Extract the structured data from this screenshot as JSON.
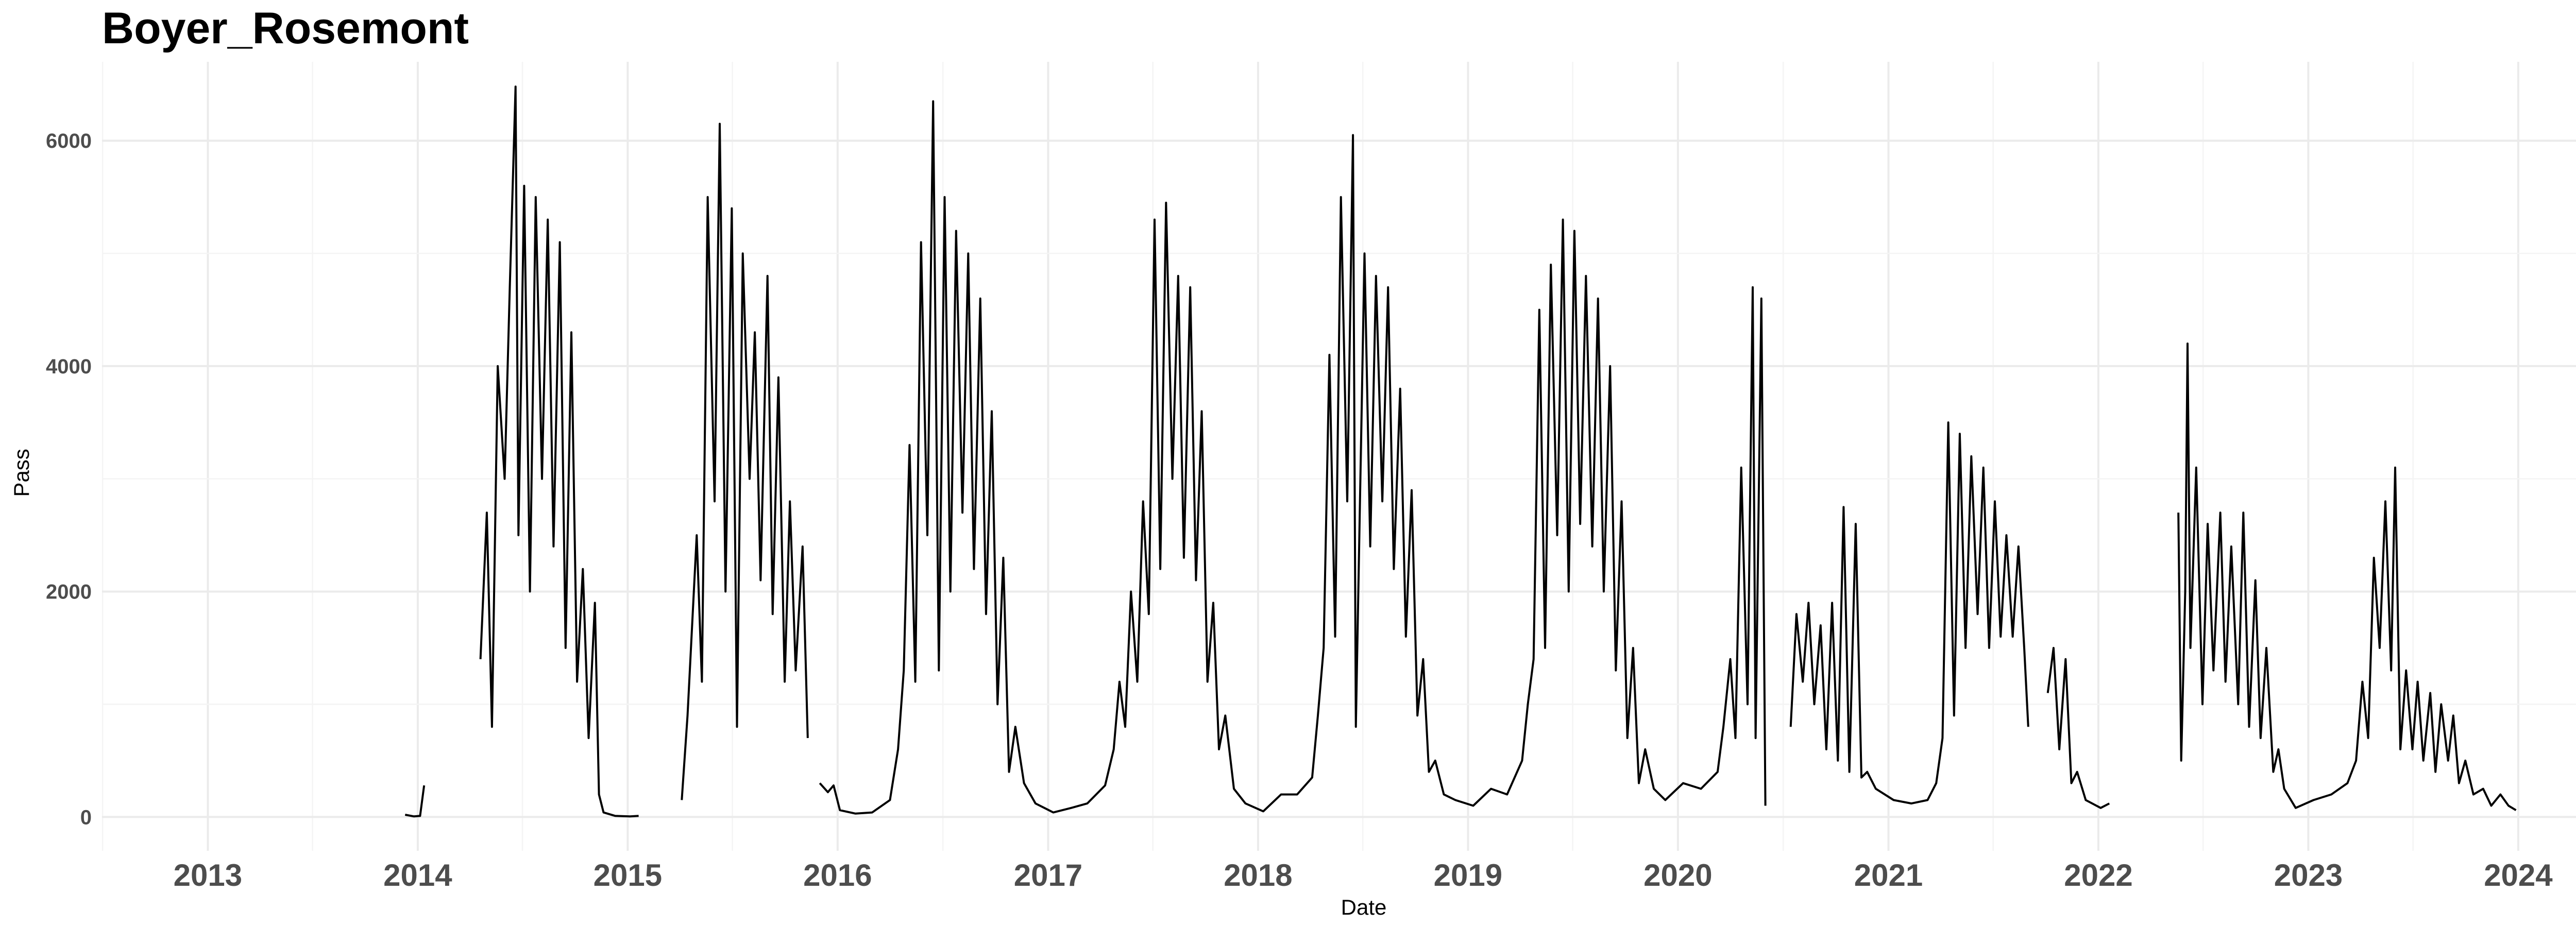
{
  "chart_data": {
    "type": "line",
    "title": "Boyer_Rosemont",
    "xlabel": "Date",
    "ylabel": "Pass",
    "x_axis_type": "date",
    "xlim": [
      "2012-07-01",
      "2024-06-30"
    ],
    "ylim": [
      -300,
      6700
    ],
    "x_ticks": [
      "2013",
      "2014",
      "2015",
      "2016",
      "2017",
      "2018",
      "2019",
      "2020",
      "2021",
      "2022",
      "2023",
      "2024"
    ],
    "y_ticks": [
      0,
      2000,
      4000,
      6000
    ],
    "grid": true,
    "legend": "none",
    "line_color": "#000000",
    "segments": [
      {
        "points": [
          [
            "2013-12-10",
            20
          ],
          [
            "2013-12-25",
            5
          ],
          [
            "2014-01-05",
            10
          ],
          [
            "2014-01-12",
            280
          ]
        ]
      },
      {
        "points": [
          [
            "2014-04-20",
            1400
          ],
          [
            "2014-05-01",
            2700
          ],
          [
            "2014-05-10",
            800
          ],
          [
            "2014-05-20",
            4000
          ],
          [
            "2014-06-01",
            3000
          ],
          [
            "2014-06-10",
            4700
          ],
          [
            "2014-06-20",
            6480
          ],
          [
            "2014-06-25",
            2500
          ],
          [
            "2014-07-05",
            5600
          ],
          [
            "2014-07-15",
            2000
          ],
          [
            "2014-07-25",
            5500
          ],
          [
            "2014-08-05",
            3000
          ],
          [
            "2014-08-15",
            5300
          ],
          [
            "2014-08-25",
            2400
          ],
          [
            "2014-09-05",
            5100
          ],
          [
            "2014-09-15",
            1500
          ],
          [
            "2014-09-25",
            4300
          ],
          [
            "2014-10-05",
            1200
          ],
          [
            "2014-10-15",
            2200
          ],
          [
            "2014-10-25",
            700
          ],
          [
            "2014-11-05",
            1900
          ],
          [
            "2014-11-12",
            200
          ],
          [
            "2014-11-20",
            40
          ],
          [
            "2014-12-10",
            10
          ],
          [
            "2015-01-05",
            5
          ],
          [
            "2015-01-20",
            10
          ]
        ]
      },
      {
        "points": [
          [
            "2015-04-05",
            150
          ],
          [
            "2015-04-15",
            900
          ],
          [
            "2015-05-01",
            2500
          ],
          [
            "2015-05-10",
            1200
          ],
          [
            "2015-05-20",
            5500
          ],
          [
            "2015-06-01",
            2800
          ],
          [
            "2015-06-10",
            6150
          ],
          [
            "2015-06-20",
            2000
          ],
          [
            "2015-07-01",
            5400
          ],
          [
            "2015-07-10",
            800
          ],
          [
            "2015-07-20",
            5000
          ],
          [
            "2015-08-01",
            3000
          ],
          [
            "2015-08-10",
            4300
          ],
          [
            "2015-08-20",
            2100
          ],
          [
            "2015-09-01",
            4800
          ],
          [
            "2015-09-10",
            1800
          ],
          [
            "2015-09-20",
            3900
          ],
          [
            "2015-10-01",
            1200
          ],
          [
            "2015-10-10",
            2800
          ],
          [
            "2015-10-20",
            1300
          ],
          [
            "2015-11-01",
            2400
          ],
          [
            "2015-11-10",
            700
          ]
        ]
      },
      {
        "points": [
          [
            "2015-12-01",
            300
          ],
          [
            "2015-12-15",
            220
          ],
          [
            "2015-12-25",
            280
          ],
          [
            "2016-01-05",
            60
          ],
          [
            "2016-02-01",
            30
          ],
          [
            "2016-03-01",
            40
          ],
          [
            "2016-04-01",
            150
          ],
          [
            "2016-04-15",
            600
          ],
          [
            "2016-04-25",
            1300
          ],
          [
            "2016-05-05",
            3300
          ],
          [
            "2016-05-15",
            1200
          ],
          [
            "2016-05-25",
            5100
          ],
          [
            "2016-06-05",
            2500
          ],
          [
            "2016-06-15",
            6350
          ],
          [
            "2016-06-25",
            1300
          ],
          [
            "2016-07-05",
            5500
          ],
          [
            "2016-07-15",
            2000
          ],
          [
            "2016-07-25",
            5200
          ],
          [
            "2016-08-05",
            2700
          ],
          [
            "2016-08-15",
            5000
          ],
          [
            "2016-08-25",
            2200
          ],
          [
            "2016-09-05",
            4600
          ],
          [
            "2016-09-15",
            1800
          ],
          [
            "2016-09-25",
            3600
          ],
          [
            "2016-10-05",
            1000
          ],
          [
            "2016-10-15",
            2300
          ],
          [
            "2016-10-25",
            400
          ],
          [
            "2016-11-05",
            800
          ],
          [
            "2016-11-20",
            300
          ],
          [
            "2016-12-10",
            120
          ],
          [
            "2017-01-10",
            40
          ],
          [
            "2017-02-10",
            80
          ],
          [
            "2017-03-10",
            120
          ],
          [
            "2017-04-10",
            280
          ],
          [
            "2017-04-25",
            600
          ],
          [
            "2017-05-05",
            1200
          ],
          [
            "2017-05-15",
            800
          ],
          [
            "2017-05-25",
            2000
          ],
          [
            "2017-06-05",
            1200
          ],
          [
            "2017-06-15",
            2800
          ],
          [
            "2017-06-25",
            1800
          ],
          [
            "2017-07-05",
            5300
          ],
          [
            "2017-07-15",
            2200
          ],
          [
            "2017-07-25",
            5450
          ],
          [
            "2017-08-05",
            3000
          ],
          [
            "2017-08-15",
            4800
          ],
          [
            "2017-08-25",
            2300
          ],
          [
            "2017-09-05",
            4700
          ],
          [
            "2017-09-15",
            2100
          ],
          [
            "2017-09-25",
            3600
          ],
          [
            "2017-10-05",
            1200
          ],
          [
            "2017-10-15",
            1900
          ],
          [
            "2017-10-25",
            600
          ],
          [
            "2017-11-05",
            900
          ],
          [
            "2017-11-20",
            250
          ],
          [
            "2017-12-10",
            120
          ],
          [
            "2018-01-10",
            50
          ],
          [
            "2018-02-10",
            200
          ],
          [
            "2018-03-10",
            200
          ],
          [
            "2018-04-05",
            350
          ],
          [
            "2018-04-15",
            900
          ],
          [
            "2018-04-25",
            1500
          ],
          [
            "2018-05-05",
            4100
          ],
          [
            "2018-05-15",
            1600
          ],
          [
            "2018-05-25",
            5500
          ],
          [
            "2018-06-05",
            2800
          ],
          [
            "2018-06-15",
            6050
          ],
          [
            "2018-06-20",
            800
          ],
          [
            "2018-07-05",
            5000
          ],
          [
            "2018-07-15",
            2400
          ],
          [
            "2018-07-25",
            4800
          ],
          [
            "2018-08-05",
            2800
          ],
          [
            "2018-08-15",
            4700
          ],
          [
            "2018-08-25",
            2200
          ],
          [
            "2018-09-05",
            3800
          ],
          [
            "2018-09-15",
            1600
          ],
          [
            "2018-09-25",
            2900
          ],
          [
            "2018-10-05",
            900
          ],
          [
            "2018-10-15",
            1400
          ],
          [
            "2018-10-25",
            400
          ],
          [
            "2018-11-05",
            500
          ],
          [
            "2018-11-20",
            200
          ],
          [
            "2018-12-10",
            150
          ],
          [
            "2019-01-10",
            100
          ],
          [
            "2019-02-10",
            250
          ],
          [
            "2019-03-10",
            200
          ],
          [
            "2019-04-05",
            500
          ],
          [
            "2019-04-15",
            1000
          ],
          [
            "2019-04-25",
            1400
          ],
          [
            "2019-05-05",
            4500
          ],
          [
            "2019-05-15",
            1500
          ],
          [
            "2019-05-25",
            4900
          ],
          [
            "2019-06-05",
            2500
          ],
          [
            "2019-06-15",
            5300
          ],
          [
            "2019-06-25",
            2000
          ],
          [
            "2019-07-05",
            5200
          ],
          [
            "2019-07-15",
            2600
          ],
          [
            "2019-07-25",
            4800
          ],
          [
            "2019-08-05",
            2400
          ],
          [
            "2019-08-15",
            4600
          ],
          [
            "2019-08-25",
            2000
          ],
          [
            "2019-09-05",
            4000
          ],
          [
            "2019-09-15",
            1300
          ],
          [
            "2019-09-25",
            2800
          ],
          [
            "2019-10-05",
            700
          ],
          [
            "2019-10-15",
            1500
          ],
          [
            "2019-10-25",
            300
          ],
          [
            "2019-11-05",
            600
          ],
          [
            "2019-11-20",
            250
          ],
          [
            "2019-12-10",
            150
          ],
          [
            "2020-01-10",
            300
          ],
          [
            "2020-02-10",
            250
          ],
          [
            "2020-03-10",
            400
          ],
          [
            "2020-03-20",
            800
          ],
          [
            "2020-04-01",
            1400
          ],
          [
            "2020-04-10",
            700
          ],
          [
            "2020-04-20",
            3100
          ],
          [
            "2020-05-01",
            1000
          ],
          [
            "2020-05-10",
            4700
          ],
          [
            "2020-05-15",
            700
          ],
          [
            "2020-05-25",
            4600
          ],
          [
            "2020-06-01",
            100
          ]
        ]
      },
      {
        "points": [
          [
            "2020-07-15",
            800
          ],
          [
            "2020-07-25",
            1800
          ],
          [
            "2020-08-05",
            1200
          ],
          [
            "2020-08-15",
            1900
          ],
          [
            "2020-08-25",
            1000
          ],
          [
            "2020-09-05",
            1700
          ],
          [
            "2020-09-15",
            600
          ],
          [
            "2020-09-25",
            1900
          ],
          [
            "2020-10-05",
            500
          ],
          [
            "2020-10-15",
            2750
          ],
          [
            "2020-10-25",
            400
          ],
          [
            "2020-11-05",
            2600
          ],
          [
            "2020-11-15",
            350
          ],
          [
            "2020-11-25",
            400
          ],
          [
            "2020-12-10",
            250
          ],
          [
            "2021-01-10",
            150
          ],
          [
            "2021-02-10",
            120
          ],
          [
            "2021-03-10",
            150
          ],
          [
            "2021-03-25",
            300
          ],
          [
            "2021-04-05",
            700
          ],
          [
            "2021-04-15",
            3500
          ],
          [
            "2021-04-25",
            900
          ],
          [
            "2021-05-05",
            3400
          ],
          [
            "2021-05-15",
            1500
          ],
          [
            "2021-05-25",
            3200
          ],
          [
            "2021-06-05",
            1800
          ],
          [
            "2021-06-15",
            3100
          ],
          [
            "2021-06-25",
            1500
          ],
          [
            "2021-07-05",
            2800
          ],
          [
            "2021-07-15",
            1600
          ],
          [
            "2021-07-25",
            2500
          ],
          [
            "2021-08-05",
            1600
          ],
          [
            "2021-08-15",
            2400
          ],
          [
            "2021-08-25",
            1500
          ],
          [
            "2021-09-01",
            800
          ]
        ]
      },
      {
        "points": [
          [
            "2021-10-05",
            1100
          ],
          [
            "2021-10-15",
            1500
          ],
          [
            "2021-10-25",
            600
          ],
          [
            "2021-11-05",
            1400
          ],
          [
            "2021-11-15",
            300
          ],
          [
            "2021-11-25",
            400
          ],
          [
            "2021-12-10",
            150
          ],
          [
            "2022-01-05",
            80
          ],
          [
            "2022-01-20",
            120
          ]
        ]
      },
      {
        "points": [
          [
            "2022-05-20",
            2700
          ],
          [
            "2022-05-25",
            500
          ],
          [
            "2022-06-01",
            2000
          ],
          [
            "2022-06-05",
            4200
          ],
          [
            "2022-06-10",
            1500
          ],
          [
            "2022-06-20",
            3100
          ],
          [
            "2022-07-01",
            1000
          ],
          [
            "2022-07-10",
            2600
          ],
          [
            "2022-07-20",
            1300
          ],
          [
            "2022-08-01",
            2700
          ],
          [
            "2022-08-10",
            1200
          ],
          [
            "2022-08-20",
            2400
          ],
          [
            "2022-09-01",
            1000
          ],
          [
            "2022-09-10",
            2700
          ],
          [
            "2022-09-20",
            800
          ],
          [
            "2022-10-01",
            2100
          ],
          [
            "2022-10-10",
            700
          ],
          [
            "2022-10-20",
            1500
          ],
          [
            "2022-11-01",
            400
          ],
          [
            "2022-11-10",
            600
          ],
          [
            "2022-11-20",
            250
          ],
          [
            "2022-12-10",
            80
          ],
          [
            "2023-01-10",
            150
          ],
          [
            "2023-02-10",
            200
          ],
          [
            "2023-03-10",
            300
          ],
          [
            "2023-03-25",
            500
          ],
          [
            "2023-04-05",
            1200
          ],
          [
            "2023-04-15",
            700
          ],
          [
            "2023-04-25",
            2300
          ],
          [
            "2023-05-05",
            1500
          ],
          [
            "2023-05-15",
            2800
          ],
          [
            "2023-05-25",
            1300
          ],
          [
            "2023-06-01",
            3100
          ],
          [
            "2023-06-10",
            600
          ],
          [
            "2023-06-20",
            1300
          ],
          [
            "2023-07-01",
            600
          ],
          [
            "2023-07-10",
            1200
          ],
          [
            "2023-07-20",
            500
          ],
          [
            "2023-08-01",
            1100
          ],
          [
            "2023-08-10",
            400
          ],
          [
            "2023-08-20",
            1000
          ],
          [
            "2023-09-01",
            500
          ],
          [
            "2023-09-10",
            900
          ],
          [
            "2023-09-20",
            300
          ],
          [
            "2023-10-01",
            500
          ],
          [
            "2023-10-15",
            200
          ],
          [
            "2023-11-01",
            250
          ],
          [
            "2023-11-15",
            100
          ],
          [
            "2023-12-01",
            200
          ],
          [
            "2023-12-15",
            100
          ],
          [
            "2023-12-28",
            60
          ]
        ]
      }
    ]
  }
}
